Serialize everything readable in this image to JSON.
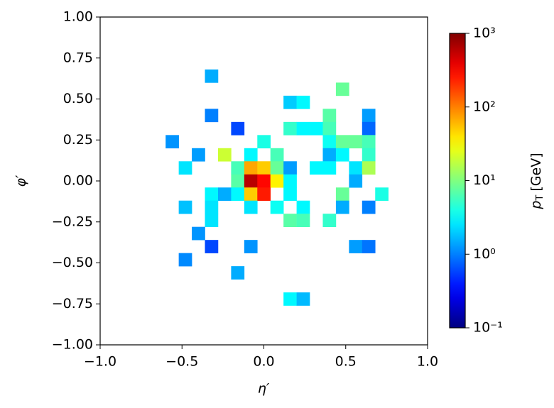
{
  "chart_data": {
    "type": "hist2d",
    "xlabel": "η′",
    "ylabel": "φ′",
    "colorbar_label": {
      "symbol": "p",
      "subscript": "T",
      "unit": "[GeV]"
    },
    "bin_size": 0.08,
    "x": [
      -0.32,
      0.48,
      0.16,
      0.24,
      -0.32,
      0.4,
      0.64,
      -0.16,
      0.16,
      0.24,
      0.32,
      0.4,
      0.64,
      -0.56,
      0.0,
      0.4,
      0.48,
      0.56,
      0.64,
      -0.4,
      -0.24,
      -0.08,
      0.08,
      0.4,
      0.48,
      0.64,
      -0.48,
      -0.16,
      -0.08,
      0.0,
      0.08,
      0.16,
      0.32,
      0.4,
      0.56,
      0.64,
      -0.16,
      -0.08,
      0.0,
      0.08,
      0.16,
      0.56,
      -0.32,
      -0.24,
      -0.16,
      -0.08,
      0.0,
      0.16,
      0.48,
      0.72,
      -0.48,
      -0.32,
      -0.08,
      0.08,
      0.24,
      0.48,
      0.64,
      -0.32,
      0.16,
      0.24,
      0.4,
      -0.4,
      -0.32,
      -0.08,
      0.56,
      0.64,
      -0.48,
      -0.16,
      0.16,
      0.24
    ],
    "y": [
      0.64,
      0.56,
      0.48,
      0.48,
      0.4,
      0.4,
      0.4,
      0.32,
      0.32,
      0.32,
      0.32,
      0.32,
      0.32,
      0.24,
      0.24,
      0.24,
      0.24,
      0.24,
      0.24,
      0.16,
      0.16,
      0.16,
      0.16,
      0.16,
      0.16,
      0.16,
      0.08,
      0.08,
      0.08,
      0.08,
      0.08,
      0.08,
      0.08,
      0.08,
      0.08,
      0.08,
      0.0,
      0.0,
      0.0,
      0.0,
      0.0,
      0.0,
      -0.08,
      -0.08,
      -0.08,
      -0.08,
      -0.08,
      -0.08,
      -0.08,
      -0.08,
      -0.16,
      -0.16,
      -0.16,
      -0.16,
      -0.16,
      -0.16,
      -0.16,
      -0.24,
      -0.24,
      -0.24,
      -0.24,
      -0.32,
      -0.4,
      -0.4,
      -0.4,
      -0.4,
      -0.48,
      -0.56,
      -0.72,
      -0.72
    ],
    "values": [
      1.5,
      8,
      2,
      3,
      1.0,
      7,
      1.3,
      0.6,
      5,
      3,
      3,
      6,
      0.8,
      1.2,
      4,
      3.5,
      8,
      8,
      6,
      1.3,
      20,
      3,
      6,
      1.5,
      3,
      5,
      2.5,
      6,
      70,
      50,
      8,
      1.3,
      3,
      3,
      2.5,
      15,
      7,
      600,
      300,
      35,
      3,
      1.5,
      3,
      1.5,
      3,
      50,
      250,
      3,
      8,
      4,
      1.8,
      2.5,
      2.5,
      3.5,
      3,
      1.5,
      1.0,
      2.5,
      7,
      6,
      5,
      1.2,
      0.6,
      1.2,
      1.3,
      0.9,
      1.1,
      1.5,
      3,
      1.7
    ],
    "xlim": [
      -1,
      1
    ],
    "ylim": [
      -1,
      1
    ],
    "xticks": [
      {
        "value": -1,
        "label": "−1.0"
      },
      {
        "value": -0.5,
        "label": "−0.5"
      },
      {
        "value": 0,
        "label": "0.0"
      },
      {
        "value": 0.5,
        "label": "0.5"
      },
      {
        "value": 1,
        "label": "1.0"
      }
    ],
    "yticks": [
      {
        "value": 1,
        "label": "1.00"
      },
      {
        "value": 0.75,
        "label": "0.75"
      },
      {
        "value": 0.5,
        "label": "0.50"
      },
      {
        "value": 0.25,
        "label": "0.25"
      },
      {
        "value": 0,
        "label": "0.00"
      },
      {
        "value": -0.25,
        "label": "−0.25"
      },
      {
        "value": -0.5,
        "label": "−0.50"
      },
      {
        "value": -0.75,
        "label": "−0.75"
      },
      {
        "value": -1,
        "label": "−1.00"
      }
    ],
    "cmap": "jet",
    "clim": [
      0.1,
      1000
    ],
    "color_log": true,
    "cticks": [
      {
        "value": 0.1,
        "label": "10⁻¹"
      },
      {
        "value": 1,
        "label": "10⁰"
      },
      {
        "value": 10,
        "label": "10¹"
      },
      {
        "value": 100,
        "label": "10²"
      },
      {
        "value": 1000,
        "label": "10³"
      }
    ]
  }
}
